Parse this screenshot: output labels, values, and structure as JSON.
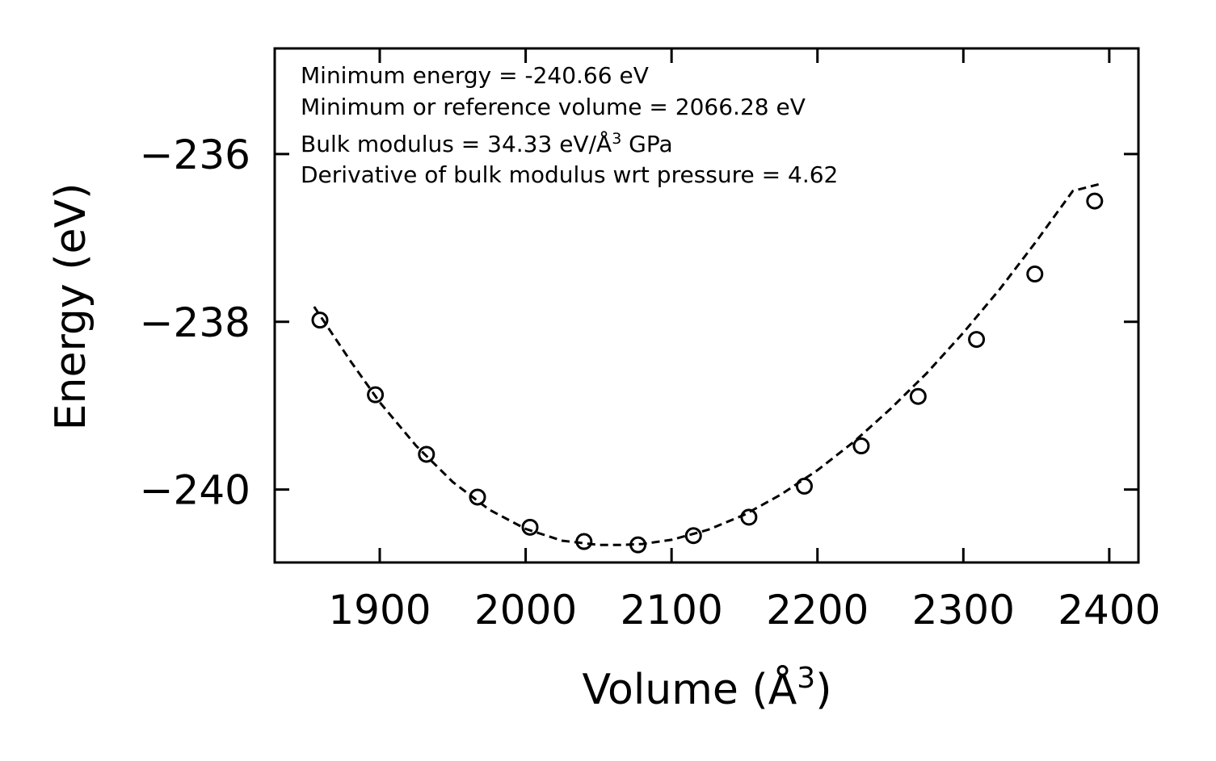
{
  "chart_data": {
    "type": "scatter",
    "xlabel": "Volume (Å",
    "xlabel_sup": "3",
    "xlabel_end": ")",
    "ylabel": "Energy (eV)",
    "xlim": [
      1828,
      2420
    ],
    "ylim": [
      -240.87,
      -234.74
    ],
    "xticks": [
      1900,
      2000,
      2100,
      2200,
      2300,
      2400
    ],
    "yticks": [
      -240,
      -238,
      -236
    ],
    "ytick_labels": [
      "−240",
      "−238",
      "−236"
    ],
    "series": [
      {
        "name": "data",
        "style": "open-circle",
        "color": "#000000",
        "x": [
          1859,
          1897,
          1932,
          1967,
          2003,
          2040,
          2077,
          2115,
          2153,
          2191,
          2230,
          2269,
          2309,
          2349,
          2390
        ],
        "y": [
          -237.98,
          -238.87,
          -239.58,
          -240.09,
          -240.45,
          -240.62,
          -240.66,
          -240.55,
          -240.33,
          -239.96,
          -239.48,
          -238.89,
          -238.21,
          -237.43,
          -236.56
        ]
      },
      {
        "name": "fit",
        "style": "dashed-line",
        "color": "#000000",
        "x": [
          1855,
          1880,
          1900,
          1925,
          1950,
          1975,
          2000,
          2025,
          2050,
          2066,
          2080,
          2100,
          2125,
          2150,
          2175,
          2200,
          2225,
          2250,
          2275,
          2300,
          2325,
          2350,
          2375,
          2395
        ],
        "y": [
          -237.82,
          -238.47,
          -238.96,
          -239.48,
          -239.91,
          -240.24,
          -240.47,
          -240.61,
          -240.66,
          -240.66,
          -240.65,
          -240.6,
          -240.48,
          -240.3,
          -240.06,
          -239.77,
          -239.43,
          -239.04,
          -238.61,
          -238.13,
          -237.61,
          -237.04,
          -236.44,
          -236.35
        ]
      }
    ],
    "annotations": [
      "Minimum energy = -240.66 eV",
      "Minimum or reference volume = 2066.28 eV",
      "Bulk modulus = 34.33 eV/Å",
      "3",
      " GPa",
      "Derivative of bulk modulus wrt pressure = 4.62"
    ]
  }
}
